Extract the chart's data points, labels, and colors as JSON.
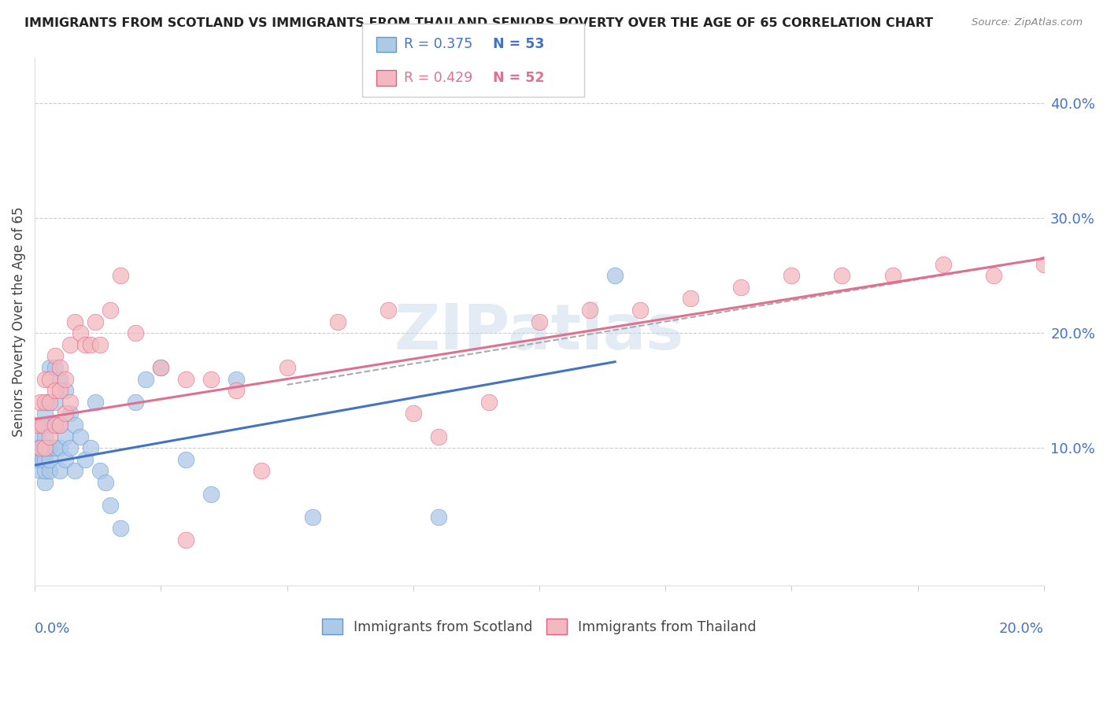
{
  "title": "IMMIGRANTS FROM SCOTLAND VS IMMIGRANTS FROM THAILAND SENIORS POVERTY OVER THE AGE OF 65 CORRELATION CHART",
  "source": "Source: ZipAtlas.com",
  "ylabel": "Seniors Poverty Over the Age of 65",
  "yticks_right": [
    "10.0%",
    "20.0%",
    "30.0%",
    "40.0%"
  ],
  "yticks_right_vals": [
    0.1,
    0.2,
    0.3,
    0.4
  ],
  "legend_r1": "R = 0.375",
  "legend_n1": "N = 53",
  "legend_r2": "R = 0.429",
  "legend_n2": "N = 52",
  "scotland_color": "#aec8e8",
  "thailand_color": "#f4b8c0",
  "scotland_edge": "#5b9bd5",
  "thailand_edge": "#e06080",
  "trendline_scotland_color": "#4472c4",
  "trendline_thailand_color": "#e07090",
  "trendline_dashed_color": "#aaaaaa",
  "background_color": "#ffffff",
  "watermark": "ZIPatlas",
  "xlim": [
    0.0,
    0.2
  ],
  "ylim": [
    -0.02,
    0.44
  ],
  "scotland_x": [
    0.0005,
    0.0005,
    0.0005,
    0.001,
    0.001,
    0.001,
    0.001,
    0.0015,
    0.0015,
    0.002,
    0.002,
    0.002,
    0.002,
    0.002,
    0.0025,
    0.0025,
    0.003,
    0.003,
    0.003,
    0.003,
    0.003,
    0.004,
    0.004,
    0.004,
    0.004,
    0.005,
    0.005,
    0.005,
    0.005,
    0.006,
    0.006,
    0.006,
    0.007,
    0.007,
    0.008,
    0.008,
    0.009,
    0.01,
    0.011,
    0.012,
    0.013,
    0.014,
    0.015,
    0.017,
    0.02,
    0.022,
    0.025,
    0.03,
    0.035,
    0.04,
    0.055,
    0.08,
    0.115
  ],
  "scotland_y": [
    0.09,
    0.1,
    0.11,
    0.08,
    0.09,
    0.1,
    0.12,
    0.09,
    0.1,
    0.07,
    0.08,
    0.09,
    0.11,
    0.13,
    0.1,
    0.14,
    0.08,
    0.09,
    0.1,
    0.12,
    0.17,
    0.1,
    0.12,
    0.14,
    0.17,
    0.08,
    0.1,
    0.12,
    0.16,
    0.09,
    0.11,
    0.15,
    0.1,
    0.13,
    0.08,
    0.12,
    0.11,
    0.09,
    0.1,
    0.14,
    0.08,
    0.07,
    0.05,
    0.03,
    0.14,
    0.16,
    0.17,
    0.09,
    0.06,
    0.16,
    0.04,
    0.04,
    0.25
  ],
  "thailand_x": [
    0.0005,
    0.001,
    0.001,
    0.0015,
    0.002,
    0.002,
    0.002,
    0.003,
    0.003,
    0.003,
    0.004,
    0.004,
    0.004,
    0.005,
    0.005,
    0.005,
    0.006,
    0.006,
    0.007,
    0.007,
    0.008,
    0.009,
    0.01,
    0.011,
    0.012,
    0.013,
    0.015,
    0.017,
    0.02,
    0.025,
    0.03,
    0.035,
    0.04,
    0.05,
    0.06,
    0.07,
    0.08,
    0.09,
    0.1,
    0.11,
    0.12,
    0.13,
    0.14,
    0.15,
    0.16,
    0.17,
    0.18,
    0.19,
    0.2,
    0.075,
    0.045,
    0.03
  ],
  "thailand_y": [
    0.12,
    0.1,
    0.14,
    0.12,
    0.1,
    0.14,
    0.16,
    0.11,
    0.14,
    0.16,
    0.12,
    0.15,
    0.18,
    0.12,
    0.15,
    0.17,
    0.13,
    0.16,
    0.14,
    0.19,
    0.21,
    0.2,
    0.19,
    0.19,
    0.21,
    0.19,
    0.22,
    0.25,
    0.2,
    0.17,
    0.16,
    0.16,
    0.15,
    0.17,
    0.21,
    0.22,
    0.11,
    0.14,
    0.21,
    0.22,
    0.22,
    0.23,
    0.24,
    0.25,
    0.25,
    0.25,
    0.26,
    0.25,
    0.26,
    0.13,
    0.08,
    0.02
  ],
  "scotland_trend_x": [
    0.0,
    0.115
  ],
  "scotland_trend_y": [
    0.085,
    0.175
  ],
  "thailand_trend_x": [
    0.0,
    0.2
  ],
  "thailand_trend_y": [
    0.125,
    0.265
  ],
  "dashed_trend_x": [
    0.05,
    0.2
  ],
  "dashed_trend_y": [
    0.155,
    0.265
  ]
}
